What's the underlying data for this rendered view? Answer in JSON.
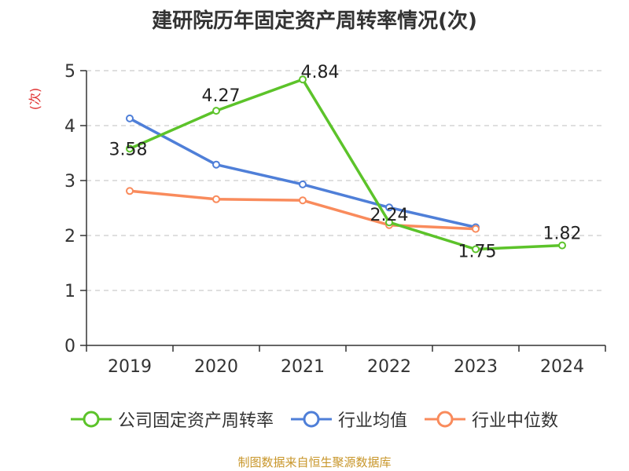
{
  "chart_data": {
    "type": "line",
    "title": "建研院历年固定资产周转率情况(次)",
    "ylabel": "(次)",
    "xlabel": "",
    "categories": [
      "2019",
      "2020",
      "2021",
      "2022",
      "2023",
      "2024"
    ],
    "ylim": [
      0,
      5
    ],
    "yticks": [
      0,
      1,
      2,
      3,
      4,
      5
    ],
    "grid": true,
    "legend_position": "bottom",
    "series": [
      {
        "name": "公司固定资产周转率",
        "color": "#5cc32a",
        "values": [
          3.58,
          4.27,
          4.84,
          2.24,
          1.75,
          1.82
        ],
        "labels": [
          "3.58",
          "4.27",
          "4.84",
          "2.24",
          "1.75",
          "1.82"
        ]
      },
      {
        "name": "行业均值",
        "color": "#4f7fd8",
        "values": [
          4.13,
          3.29,
          2.93,
          2.51,
          2.15,
          null
        ]
      },
      {
        "name": "行业中位数",
        "color": "#f98b5c",
        "values": [
          2.81,
          2.66,
          2.64,
          2.19,
          2.12,
          null
        ]
      }
    ]
  },
  "legend": {
    "items": [
      "公司固定资产周转率",
      "行业均值",
      "行业中位数"
    ]
  },
  "source": {
    "text": "制图数据来自恒生聚源数据库",
    "color": "#c8962a"
  },
  "colors": {
    "axis": "#333333",
    "grid": "#cccccc",
    "ylabel": "#e03030"
  }
}
